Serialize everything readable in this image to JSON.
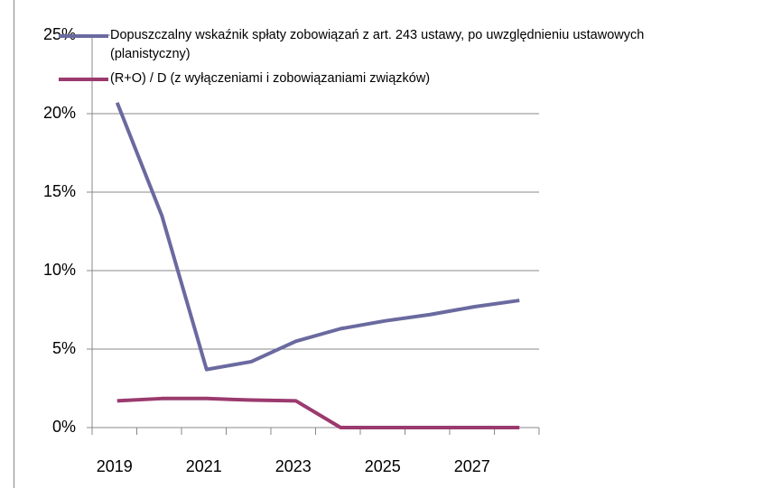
{
  "chart_data": {
    "type": "line",
    "categories": [
      "2019",
      null,
      "2021",
      null,
      "2023",
      null,
      "2025",
      null,
      "2027",
      null
    ],
    "series": [
      {
        "name": "Dopuszczalny wskaźnik spłaty zobowiązań z art. 243 ustawy, po uwzględnieniu ustawowych\n(planistyczny)",
        "color": "#6a6aa0",
        "values": [
          20.7,
          13.5,
          3.7,
          4.2,
          5.5,
          6.3,
          6.8,
          7.2,
          7.7,
          8.1
        ]
      },
      {
        "name": "(R+O) / D (z wyłączeniami i zobowiązaniami związków)",
        "color": "#9b3a6e",
        "values": [
          1.7,
          1.85,
          1.85,
          1.75,
          1.7,
          0,
          0,
          0,
          0,
          0
        ]
      }
    ],
    "ylim": [
      0,
      25
    ],
    "yticks": [
      {
        "value": 0,
        "label": "0%"
      },
      {
        "value": 5,
        "label": "5%"
      },
      {
        "value": 10,
        "label": "10%"
      },
      {
        "value": 15,
        "label": "15%"
      },
      {
        "value": 20,
        "label": "20%"
      },
      {
        "value": 25,
        "label": "25%"
      }
    ],
    "grid": true
  }
}
